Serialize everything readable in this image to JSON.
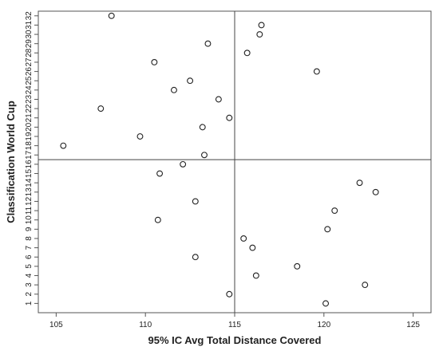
{
  "chart_data": {
    "type": "scatter",
    "title": "",
    "xlabel": "95% IC Avg Total Distance Covered",
    "ylabel": "Classification World Cup",
    "xlim": [
      104,
      126
    ],
    "ylim": [
      0,
      32.5
    ],
    "xticks": [
      105,
      110,
      115,
      120,
      125
    ],
    "yticks": [
      1,
      2,
      3,
      4,
      5,
      6,
      7,
      8,
      9,
      10,
      11,
      12,
      13,
      14,
      15,
      16,
      17,
      18,
      19,
      20,
      21,
      22,
      23,
      24,
      25,
      26,
      27,
      28,
      29,
      30,
      31,
      32
    ],
    "reference_lines": {
      "x": 115,
      "y": 16.5
    },
    "grid": false,
    "legend": "none",
    "points": [
      {
        "x": 120.1,
        "y": 1
      },
      {
        "x": 114.7,
        "y": 2
      },
      {
        "x": 122.3,
        "y": 3
      },
      {
        "x": 116.2,
        "y": 4
      },
      {
        "x": 118.5,
        "y": 5
      },
      {
        "x": 112.8,
        "y": 6
      },
      {
        "x": 116.0,
        "y": 7
      },
      {
        "x": 115.5,
        "y": 8
      },
      {
        "x": 120.2,
        "y": 9
      },
      {
        "x": 110.7,
        "y": 10
      },
      {
        "x": 120.6,
        "y": 11
      },
      {
        "x": 112.8,
        "y": 12
      },
      {
        "x": 122.9,
        "y": 13
      },
      {
        "x": 122.0,
        "y": 14
      },
      {
        "x": 110.8,
        "y": 15
      },
      {
        "x": 112.1,
        "y": 16
      },
      {
        "x": 113.3,
        "y": 17
      },
      {
        "x": 105.4,
        "y": 18
      },
      {
        "x": 109.7,
        "y": 19
      },
      {
        "x": 113.2,
        "y": 20
      },
      {
        "x": 114.7,
        "y": 21
      },
      {
        "x": 107.5,
        "y": 22
      },
      {
        "x": 114.1,
        "y": 23
      },
      {
        "x": 111.6,
        "y": 24
      },
      {
        "x": 112.5,
        "y": 25
      },
      {
        "x": 119.6,
        "y": 26
      },
      {
        "x": 110.5,
        "y": 27
      },
      {
        "x": 115.7,
        "y": 28
      },
      {
        "x": 113.5,
        "y": 29
      },
      {
        "x": 116.4,
        "y": 30
      },
      {
        "x": 116.5,
        "y": 31
      },
      {
        "x": 108.1,
        "y": 32
      }
    ]
  }
}
